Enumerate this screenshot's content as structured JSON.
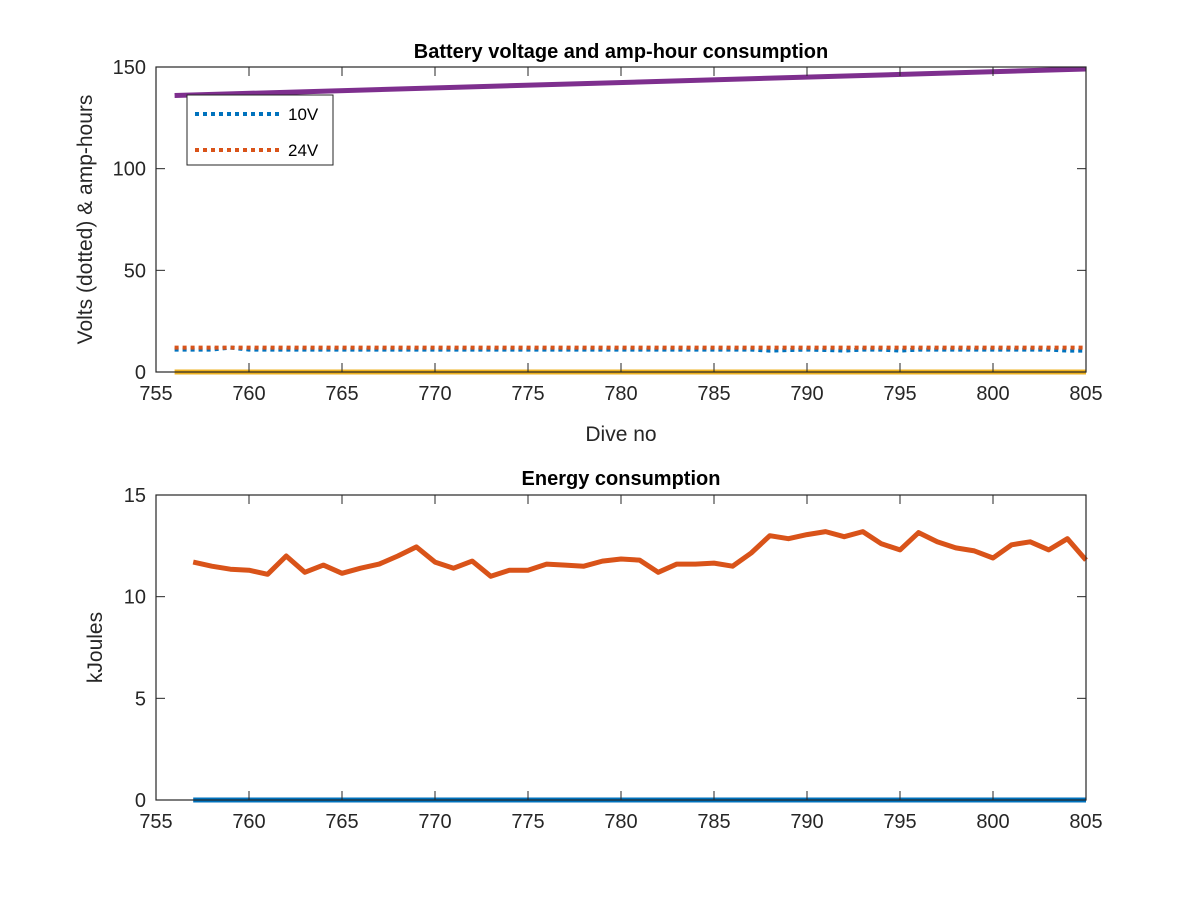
{
  "chart_data": [
    {
      "type": "line",
      "title": "Battery voltage and amp-hour consumption",
      "xlabel": "Dive no",
      "ylabel": "Volts (dotted) & amp-hours",
      "xlim": [
        755,
        805
      ],
      "ylim": [
        0,
        150
      ],
      "xticks": [
        "755",
        "760",
        "765",
        "770",
        "775",
        "780",
        "785",
        "790",
        "795",
        "800",
        "805"
      ],
      "yticks": [
        "0",
        "50",
        "100",
        "150"
      ],
      "grid": false,
      "legend_position": "top-left",
      "series": [
        {
          "name": "10V",
          "style": "dotted",
          "color": "#0072BD",
          "x": [
            756,
            757,
            758,
            759,
            760,
            761,
            762,
            763,
            764,
            765,
            766,
            767,
            768,
            769,
            770,
            771,
            772,
            773,
            774,
            775,
            776,
            777,
            778,
            779,
            780,
            781,
            782,
            783,
            784,
            785,
            786,
            787,
            788,
            789,
            790,
            791,
            792,
            793,
            794,
            795,
            796,
            797,
            798,
            799,
            800,
            801,
            802,
            803,
            804,
            805
          ],
          "y": [
            11,
            11,
            11,
            12,
            11,
            11,
            11,
            11,
            11,
            11,
            11,
            11,
            11,
            11,
            11,
            11,
            11,
            11,
            11,
            11,
            11,
            11,
            11,
            11,
            11,
            11,
            11,
            11,
            11,
            11,
            11,
            11,
            10.5,
            10.8,
            11,
            10.8,
            10.5,
            11,
            11,
            10.5,
            11,
            11,
            11,
            11,
            11,
            11,
            11,
            11,
            10.5,
            10.5
          ]
        },
        {
          "name": "24V",
          "style": "dotted",
          "color": "#D95319",
          "x": [
            756,
            760,
            765,
            770,
            775,
            780,
            785,
            790,
            795,
            800,
            805
          ],
          "y": [
            12,
            12,
            12,
            12,
            12,
            12,
            12,
            12,
            12,
            12,
            12
          ]
        },
        {
          "style": "solid",
          "color": "#EDB120",
          "x": [
            756,
            805
          ],
          "y": [
            0,
            0
          ]
        },
        {
          "style": "solid",
          "color": "#7E2F8E",
          "x": [
            756,
            805
          ],
          "y": [
            136,
            149
          ]
        }
      ]
    },
    {
      "type": "line",
      "title": "Energy consumption",
      "xlabel": "",
      "ylabel": "kJoules",
      "xlim": [
        755,
        805
      ],
      "ylim": [
        0,
        15
      ],
      "xticks": [
        "755",
        "760",
        "765",
        "770",
        "775",
        "780",
        "785",
        "790",
        "795",
        "800",
        "805"
      ],
      "yticks": [
        "0",
        "5",
        "10",
        "15"
      ],
      "grid": false,
      "series": [
        {
          "style": "solid",
          "color": "#0072BD",
          "x": [
            757,
            805
          ],
          "y": [
            0,
            0
          ]
        },
        {
          "style": "solid",
          "color": "#D95319",
          "x": [
            757,
            758,
            759,
            760,
            761,
            762,
            763,
            764,
            765,
            766,
            767,
            768,
            769,
            770,
            771,
            772,
            773,
            774,
            775,
            776,
            777,
            778,
            779,
            780,
            781,
            782,
            783,
            784,
            785,
            786,
            787,
            788,
            789,
            790,
            791,
            792,
            793,
            794,
            795,
            796,
            797,
            798,
            799,
            800,
            801,
            802,
            803,
            804,
            805
          ],
          "y": [
            11.7,
            11.5,
            11.35,
            11.3,
            11.1,
            12.0,
            11.2,
            11.55,
            11.15,
            11.4,
            11.6,
            12.0,
            12.45,
            11.7,
            11.4,
            11.75,
            11.0,
            11.3,
            11.3,
            11.6,
            11.55,
            11.5,
            11.75,
            11.85,
            11.8,
            11.2,
            11.6,
            11.6,
            11.65,
            11.5,
            12.15,
            13.0,
            12.85,
            13.05,
            13.2,
            12.95,
            13.2,
            12.6,
            12.3,
            13.15,
            12.7,
            12.4,
            12.25,
            11.9,
            12.55,
            12.7,
            12.3,
            12.85,
            11.8
          ]
        }
      ]
    }
  ]
}
